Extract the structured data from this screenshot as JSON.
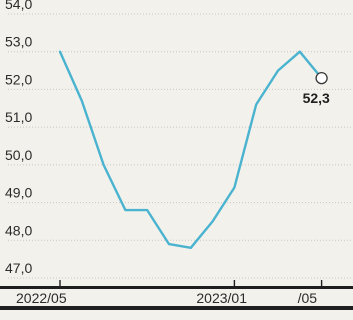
{
  "chart_data": {
    "type": "line",
    "title": "",
    "xlabel": "",
    "ylabel": "",
    "ylim": [
      47.0,
      54.0
    ],
    "yticks": [
      "47,0",
      "48,0",
      "49,0",
      "50,0",
      "51,0",
      "52,0",
      "53,0",
      "54,0"
    ],
    "xtick_labels": [
      "2022/05",
      "2023/01",
      "/05"
    ],
    "grid": true,
    "legend": "none",
    "line_color": "#4ab3cf",
    "x": [
      "2022/05",
      "2022/06",
      "2022/07",
      "2022/08",
      "2022/09",
      "2022/10",
      "2022/11",
      "2022/12",
      "2023/01",
      "2023/02",
      "2023/03",
      "2023/04",
      "2023/05"
    ],
    "series": [
      {
        "values": [
          53.0,
          51.7,
          50.0,
          48.8,
          48.8,
          47.9,
          47.8,
          48.5,
          49.4,
          51.6,
          52.5,
          53.0,
          52.3
        ]
      }
    ],
    "annotation": {
      "label": "52,3",
      "x": "2023/05",
      "value": 52.3
    }
  }
}
